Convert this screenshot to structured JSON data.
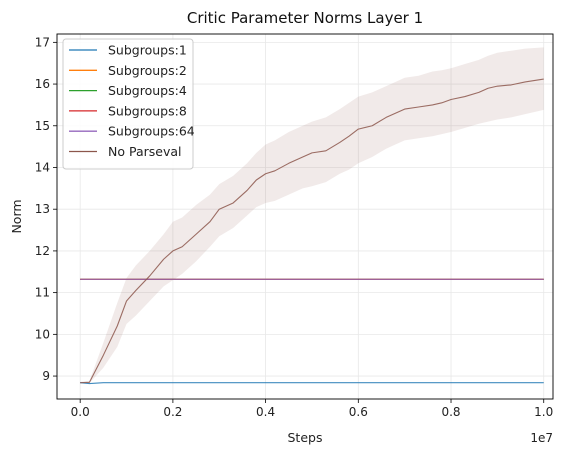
{
  "chart_data": {
    "type": "line",
    "title": "Critic Parameter Norms Layer 1",
    "xlabel": "Steps",
    "ylabel": "Norm",
    "x_multiplier_label": "1e7",
    "xlim": [
      -0.05,
      1.02
    ],
    "ylim": [
      8.45,
      17.2
    ],
    "x_ticks": [
      0.0,
      0.2,
      0.4,
      0.6,
      0.8,
      1.0
    ],
    "x_tick_labels": [
      "0.0",
      "0.2",
      "0.4",
      "0.6",
      "0.8",
      "1.0"
    ],
    "y_ticks": [
      9,
      10,
      11,
      12,
      13,
      14,
      15,
      16,
      17
    ],
    "y_tick_labels": [
      "9",
      "10",
      "11",
      "12",
      "13",
      "14",
      "15",
      "16",
      "17"
    ],
    "grid": true,
    "legend_position": "top-left",
    "series": [
      {
        "name": "Subgroups:1",
        "color": "#1f77b4",
        "x": [
          0.0,
          0.02,
          0.05,
          0.1,
          0.2,
          0.4,
          0.6,
          0.8,
          1.0
        ],
        "y": [
          8.84,
          8.82,
          8.84,
          8.84,
          8.84,
          8.84,
          8.84,
          8.84,
          8.84
        ]
      },
      {
        "name": "Subgroups:2",
        "color": "#ff7f0e",
        "x": [
          0.0,
          0.2,
          0.4,
          0.6,
          0.8,
          1.0
        ],
        "y": [
          11.32,
          11.32,
          11.32,
          11.32,
          11.32,
          11.32
        ]
      },
      {
        "name": "Subgroups:4",
        "color": "#2ca02c",
        "x": [
          0.0,
          0.2,
          0.4,
          0.6,
          0.8,
          1.0
        ],
        "y": [
          11.32,
          11.32,
          11.32,
          11.32,
          11.32,
          11.32
        ]
      },
      {
        "name": "Subgroups:8",
        "color": "#d62728",
        "x": [
          0.0,
          0.2,
          0.4,
          0.6,
          0.8,
          1.0
        ],
        "y": [
          11.32,
          11.32,
          11.32,
          11.32,
          11.32,
          11.32
        ]
      },
      {
        "name": "Subgroups:64",
        "color": "#9467bd",
        "x": [
          0.0,
          0.2,
          0.4,
          0.6,
          0.8,
          1.0
        ],
        "y": [
          11.32,
          11.32,
          11.32,
          11.32,
          11.32,
          11.32
        ]
      },
      {
        "name": "No Parseval",
        "color": "#8c564b",
        "x": [
          0.0,
          0.02,
          0.05,
          0.08,
          0.1,
          0.12,
          0.15,
          0.18,
          0.2,
          0.22,
          0.25,
          0.28,
          0.3,
          0.33,
          0.36,
          0.38,
          0.4,
          0.42,
          0.45,
          0.48,
          0.5,
          0.53,
          0.56,
          0.58,
          0.6,
          0.63,
          0.66,
          0.68,
          0.7,
          0.73,
          0.76,
          0.78,
          0.8,
          0.83,
          0.86,
          0.88,
          0.9,
          0.93,
          0.96,
          1.0
        ],
        "y": [
          8.84,
          8.85,
          9.5,
          10.2,
          10.8,
          11.05,
          11.4,
          11.8,
          12.0,
          12.1,
          12.4,
          12.7,
          13.0,
          13.15,
          13.45,
          13.7,
          13.85,
          13.92,
          14.1,
          14.25,
          14.35,
          14.4,
          14.6,
          14.75,
          14.92,
          15.0,
          15.2,
          15.3,
          15.4,
          15.45,
          15.5,
          15.55,
          15.63,
          15.7,
          15.8,
          15.9,
          15.95,
          15.98,
          16.05,
          16.12
        ],
        "band_lower": [
          8.82,
          8.83,
          9.2,
          9.7,
          10.25,
          10.45,
          10.8,
          11.15,
          11.3,
          11.45,
          11.75,
          12.1,
          12.35,
          12.55,
          12.85,
          13.05,
          13.15,
          13.2,
          13.35,
          13.5,
          13.55,
          13.65,
          13.85,
          13.95,
          14.1,
          14.25,
          14.45,
          14.55,
          14.65,
          14.7,
          14.75,
          14.8,
          14.85,
          14.95,
          15.05,
          15.1,
          15.15,
          15.2,
          15.28,
          15.38
        ],
        "band_upper": [
          8.86,
          8.88,
          9.8,
          10.75,
          11.35,
          11.65,
          12.0,
          12.4,
          12.7,
          12.8,
          13.1,
          13.35,
          13.6,
          13.8,
          14.1,
          14.35,
          14.55,
          14.65,
          14.85,
          15.0,
          15.1,
          15.2,
          15.4,
          15.55,
          15.7,
          15.8,
          15.95,
          16.05,
          16.15,
          16.2,
          16.3,
          16.33,
          16.38,
          16.48,
          16.58,
          16.68,
          16.75,
          16.8,
          16.85,
          16.88
        ]
      }
    ]
  }
}
